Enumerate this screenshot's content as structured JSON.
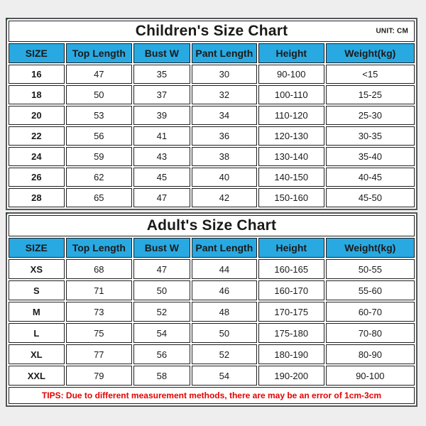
{
  "colors": {
    "header_bg": "#29a9e1",
    "tips_text": "#e60000",
    "outer_border": "#54565a",
    "grid_line": "#1f1f1f",
    "page_bg": "#eeeeee"
  },
  "tips": {
    "text": "TIPS: Due to different measurement methods, there are may be an error of 1cm-3cm"
  },
  "chart_data": [
    {
      "type": "table",
      "title": "Children's Size Chart",
      "unit": "UNIT: CM",
      "columns": [
        "SIZE",
        "Top Length",
        "Bust W",
        "Pant Length",
        "Height",
        "Weight(kg)"
      ],
      "rows": [
        [
          "16",
          "47",
          "35",
          "30",
          "90-100",
          "<15"
        ],
        [
          "18",
          "50",
          "37",
          "32",
          "100-110",
          "15-25"
        ],
        [
          "20",
          "53",
          "39",
          "34",
          "110-120",
          "25-30"
        ],
        [
          "22",
          "56",
          "41",
          "36",
          "120-130",
          "30-35"
        ],
        [
          "24",
          "59",
          "43",
          "38",
          "130-140",
          "35-40"
        ],
        [
          "26",
          "62",
          "45",
          "40",
          "140-150",
          "40-45"
        ],
        [
          "28",
          "65",
          "47",
          "42",
          "150-160",
          "45-50"
        ]
      ]
    },
    {
      "type": "table",
      "title": "Adult's Size Chart",
      "unit": "",
      "columns": [
        "SIZE",
        "Top Length",
        "Bust W",
        "Pant Length",
        "Height",
        "Weight(kg)"
      ],
      "rows": [
        [
          "XS",
          "68",
          "47",
          "44",
          "160-165",
          "50-55"
        ],
        [
          "S",
          "71",
          "50",
          "46",
          "160-170",
          "55-60"
        ],
        [
          "M",
          "73",
          "52",
          "48",
          "170-175",
          "60-70"
        ],
        [
          "L",
          "75",
          "54",
          "50",
          "175-180",
          "70-80"
        ],
        [
          "XL",
          "77",
          "56",
          "52",
          "180-190",
          "80-90"
        ],
        [
          "XXL",
          "79",
          "58",
          "54",
          "190-200",
          "90-100"
        ]
      ]
    }
  ]
}
